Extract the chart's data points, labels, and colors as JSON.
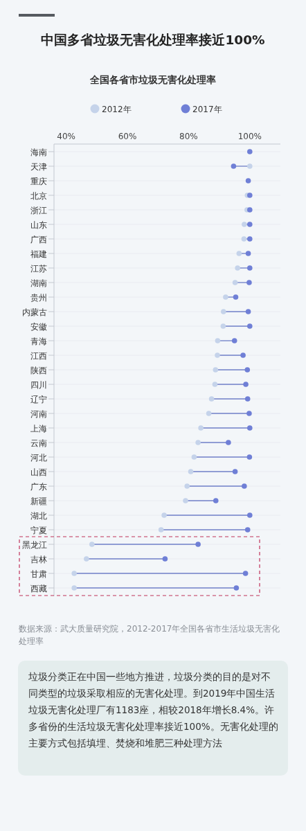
{
  "chart_data": {
    "type": "scatter",
    "title": "中国多省垃圾无害化处理率接近100%",
    "subtitle": "全国各省市垃圾无害化处理率",
    "categories": [
      "海南",
      "天津",
      "重庆",
      "北京",
      "浙江",
      "山东",
      "广西",
      "福建",
      "江苏",
      "湖南",
      "贵州",
      "内蒙古",
      "安徽",
      "青海",
      "江西",
      "陕西",
      "四川",
      "辽宁",
      "河南",
      "上海",
      "云南",
      "河北",
      "山西",
      "广东",
      "新疆",
      "湖北",
      "宁夏",
      "黑龙江",
      "吉林",
      "甘肃",
      "西藏"
    ],
    "series": [
      {
        "name": "2012年",
        "color": "#c5d3ea",
        "values": [
          null,
          100,
          null,
          99.2,
          99.1,
          98.2,
          98.1,
          96.5,
          96.0,
          95.2,
          92.1,
          91.4,
          91.3,
          89.5,
          89.4,
          88.8,
          88.6,
          87.5,
          86.6,
          84.0,
          83.1,
          81.8,
          80.7,
          79.5,
          79.0,
          72.0,
          71.0,
          48.4,
          46.6,
          42.6,
          42.6
        ]
      },
      {
        "name": "2017年",
        "color": "#6f7fd6",
        "values": [
          100,
          94.7,
          99.5,
          100,
          100,
          100,
          100,
          99.5,
          100,
          99.8,
          95.4,
          99.5,
          100,
          95.0,
          97.8,
          99.2,
          98.7,
          99.3,
          99.8,
          100,
          93.0,
          99.9,
          95.2,
          98.2,
          88.9,
          100,
          99.3,
          83.1,
          72.3,
          98.6,
          95.6
        ]
      }
    ],
    "orientation": "horizontal",
    "xlim": [
      36,
      110
    ],
    "xticks": [
      {
        "value": 40,
        "label": "40%"
      },
      {
        "value": 60,
        "label": "60%"
      },
      {
        "value": 80,
        "label": "80%"
      },
      {
        "value": 100,
        "label": "100%"
      }
    ],
    "grid": "y",
    "legend": "top",
    "marker": "circle",
    "annotations": [
      "数据来源：武大质量研究院，2012-2017年全国各省市生活垃圾无害化处理率",
      "垃圾分类正在中国一些地方推进，垃圾分类的目的是对不同类型的垃圾采取相应的无害化处理。到2019年中国生活垃圾无害化处理厂有1183座，相较2018年增长8.4%。许多省份的生活垃圾无害化处理率接近100%。无害化处理的主要方式包括填埋、焚烧和堆肥三种处理方法"
    ]
  }
}
